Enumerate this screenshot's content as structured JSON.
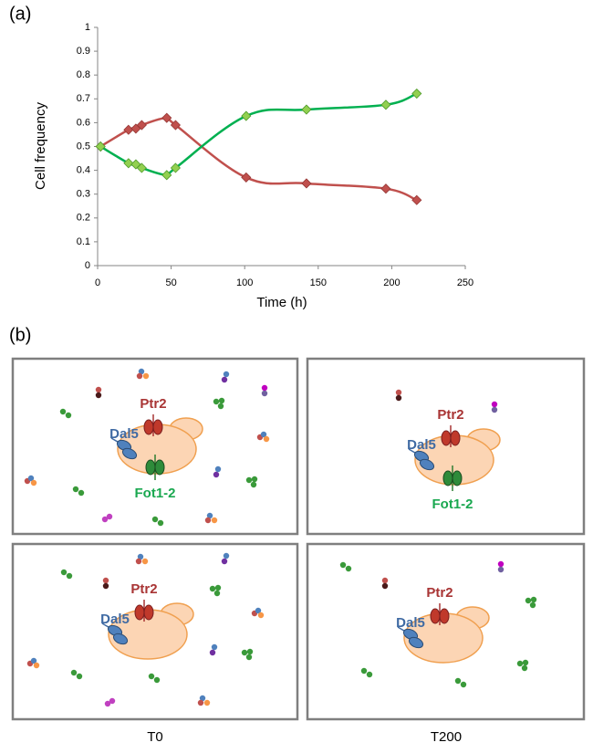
{
  "chart_data": {
    "type": "line",
    "panel_label": "(a)",
    "x_label": "Time (h)",
    "y_label": "Cell frequency",
    "x": [
      2,
      21,
      26,
      30,
      47,
      53,
      101,
      142,
      196,
      217
    ],
    "series": [
      {
        "color": "#c0504d",
        "values": [
          0.5,
          0.57,
          0.575,
          0.59,
          0.62,
          0.59,
          0.37,
          0.345,
          0.323,
          0.275
        ]
      },
      {
        "color": "#00b050",
        "values": [
          0.5,
          0.43,
          0.425,
          0.41,
          0.38,
          0.41,
          0.628,
          0.655,
          0.675,
          0.722
        ]
      }
    ],
    "xlim": [
      0,
      250
    ],
    "xticks": [
      0,
      50,
      100,
      150,
      200,
      250
    ],
    "ylim": [
      0,
      1
    ],
    "yticks": [
      0,
      0.1,
      0.2,
      0.3,
      0.4,
      0.5,
      0.6,
      0.7,
      0.8,
      0.9,
      1
    ],
    "grid": false
  },
  "diagram": {
    "panel_label": "(b)",
    "panels": [
      [
        "Ptr2",
        "Dal5",
        "Fot1-2"
      ],
      [
        "Ptr2",
        "Dal5",
        "Fot1-2"
      ],
      [
        "Ptr2",
        "Dal5"
      ],
      [
        "Ptr2",
        "Dal5"
      ]
    ],
    "column_labels": [
      "T0",
      "T200"
    ]
  }
}
